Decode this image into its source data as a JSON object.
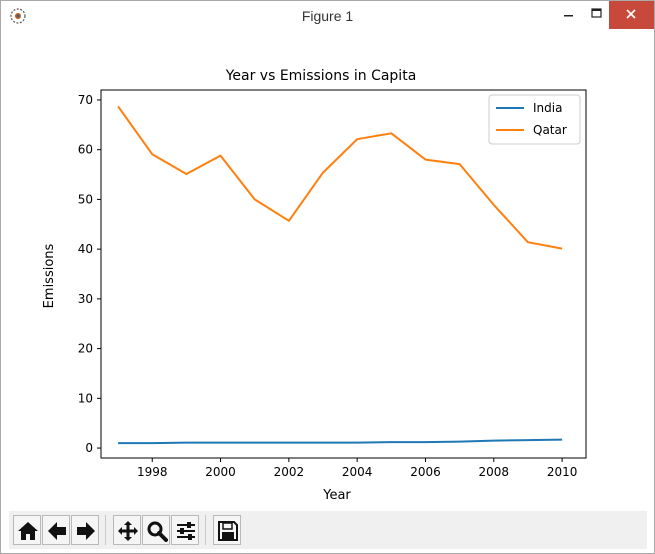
{
  "window": {
    "title": "Figure 1",
    "controls": {
      "minimize": "minimize-icon",
      "maximize": "maximize-icon",
      "close": "close-icon"
    }
  },
  "chart_data": {
    "type": "line",
    "title": "Year vs Emissions in Capita",
    "xlabel": "Year",
    "ylabel": "Emissions",
    "xlim": [
      1996.5,
      2010.7
    ],
    "ylim": [
      -2,
      72
    ],
    "xticks": [
      1998,
      2000,
      2002,
      2004,
      2006,
      2008,
      2010
    ],
    "yticks": [
      0,
      10,
      20,
      30,
      40,
      50,
      60,
      70
    ],
    "x": [
      1997,
      1998,
      1999,
      2000,
      2001,
      2002,
      2003,
      2004,
      2005,
      2006,
      2007,
      2008,
      2009,
      2010
    ],
    "series": [
      {
        "name": "India",
        "color": "#1f77b4",
        "values": [
          1.0,
          1.0,
          1.1,
          1.1,
          1.1,
          1.1,
          1.1,
          1.1,
          1.2,
          1.2,
          1.3,
          1.5,
          1.6,
          1.7
        ]
      },
      {
        "name": "Qatar",
        "color": "#ff7f0e",
        "values": [
          68.7,
          59.1,
          55.1,
          58.8,
          50.0,
          45.7,
          55.4,
          62.1,
          63.3,
          58.0,
          57.1,
          48.9,
          41.4,
          40.1
        ]
      }
    ],
    "legend_position": "top-right",
    "grid": false
  },
  "toolbar": {
    "buttons": [
      {
        "name": "home-button",
        "icon": "home-icon"
      },
      {
        "name": "back-button",
        "icon": "arrow-left-icon"
      },
      {
        "name": "forward-button",
        "icon": "arrow-right-icon"
      },
      {
        "name": "pan-button",
        "icon": "move-icon"
      },
      {
        "name": "zoom-button",
        "icon": "magnifier-icon"
      },
      {
        "name": "configure-subplots-button",
        "icon": "sliders-icon"
      },
      {
        "name": "save-button",
        "icon": "floppy-disk-icon"
      }
    ]
  }
}
